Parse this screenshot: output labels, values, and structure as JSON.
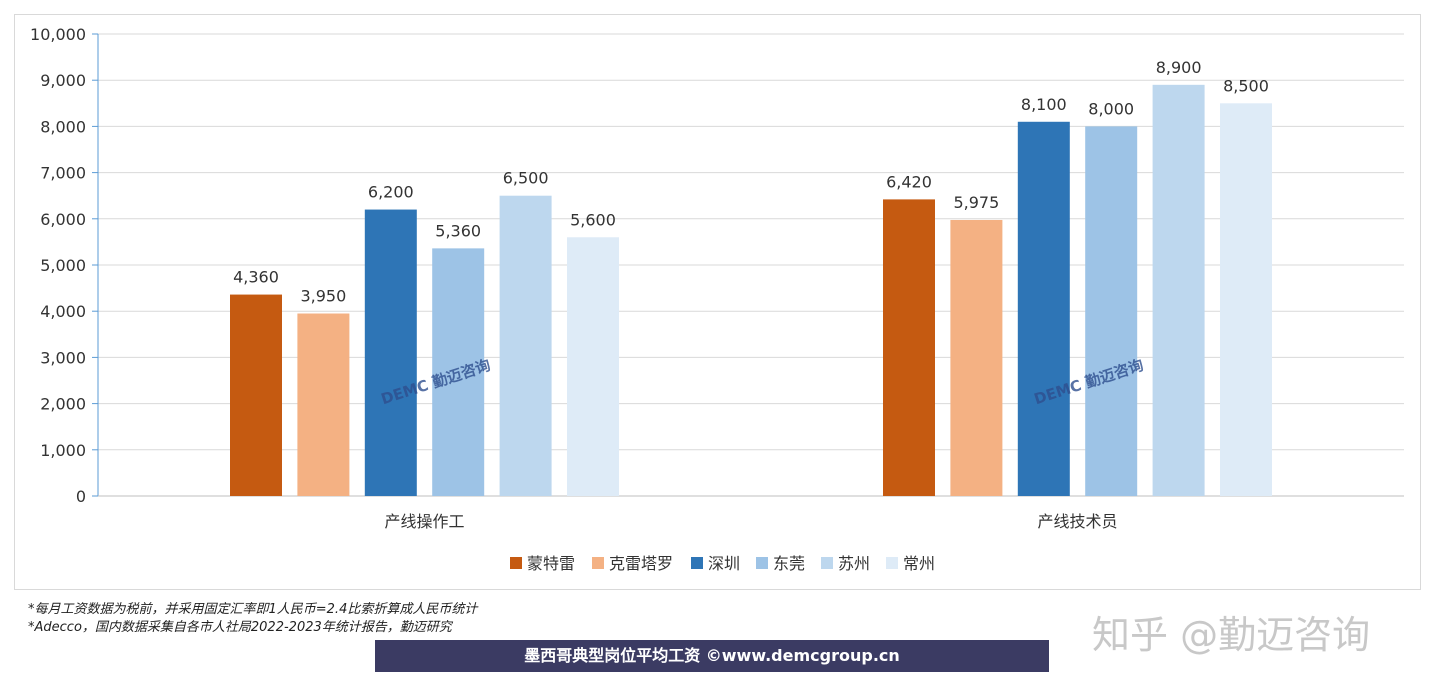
{
  "chart_data": {
    "type": "bar",
    "categories": [
      "产线操作工",
      "产线技术员"
    ],
    "series": [
      {
        "name": "蒙特雷",
        "color": "#C55A11",
        "values": [
          4360,
          6420
        ]
      },
      {
        "name": "克雷塔罗",
        "color": "#F4B183",
        "values": [
          3950,
          5975
        ]
      },
      {
        "name": "深圳",
        "color": "#2E75B6",
        "values": [
          6200,
          8100
        ]
      },
      {
        "name": "东莞",
        "color": "#9DC3E6",
        "values": [
          5360,
          8000
        ]
      },
      {
        "name": "苏州",
        "color": "#BDD7EE",
        "values": [
          6500,
          8900
        ]
      },
      {
        "name": "常州",
        "color": "#DEEBF7",
        "values": [
          5600,
          8500
        ]
      }
    ],
    "ylim": [
      0,
      10000
    ],
    "yticks": [
      0,
      1000,
      2000,
      3000,
      4000,
      5000,
      6000,
      7000,
      8000,
      9000,
      10000
    ],
    "ytick_labels": [
      "0",
      "1,000",
      "2,000",
      "3,000",
      "4,000",
      "5,000",
      "6,000",
      "7,000",
      "8,000",
      "9,000",
      "10,000"
    ],
    "grid": true,
    "legend": "bottom"
  },
  "watermark": "DEMC 勤迈咨询",
  "notes": [
    "*每月工资数据为税前，并采用固定汇率即1人民币=2.4比索折算成人民币统计",
    "*Adecco，国内数据采集自各市人社局2022-2023年统计报告，勤迈研究"
  ],
  "banner": "墨西哥典型岗位平均工资 ©www.demcgroup.cn",
  "zhihu": "知乎 @勤迈咨询"
}
